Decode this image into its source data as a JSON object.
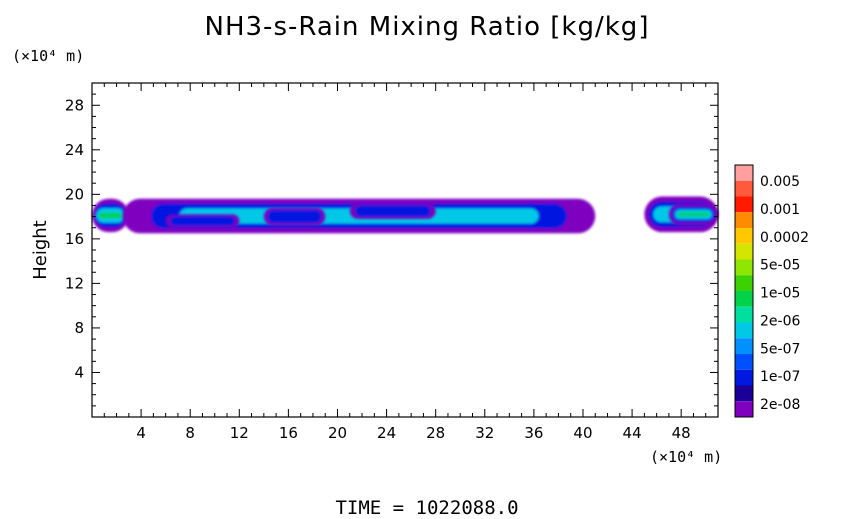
{
  "chart_data": {
    "type": "heatmap",
    "title": "NH3-s-Rain Mixing Ratio [kg/kg]",
    "xlabel": "",
    "ylabel": "Height",
    "x_unit": "(×10⁴ m)",
    "y_unit": "(×10⁴ m)",
    "xlim": [
      0,
      51
    ],
    "ylim": [
      0,
      30
    ],
    "x_ticks": [
      4,
      8,
      12,
      16,
      20,
      24,
      28,
      32,
      36,
      40,
      44,
      48
    ],
    "y_ticks": [
      4,
      8,
      12,
      16,
      20,
      24,
      28
    ],
    "colorbar": {
      "labels": [
        "0.005",
        "0.001",
        "0.0002",
        "5e-05",
        "1e-05",
        "2e-06",
        "5e-07",
        "1e-07",
        "2e-08"
      ],
      "colors": [
        "#ff9f9f",
        "#ff5a3c",
        "#ff1a00",
        "#ff8c00",
        "#ffc800",
        "#d4e600",
        "#8fe600",
        "#3cd100",
        "#00d24a",
        "#00dfa0",
        "#00c8e6",
        "#0090ff",
        "#0050ff",
        "#0018e0",
        "#1a0096",
        "#8000c0"
      ]
    },
    "regions": [
      {
        "x": [
          0,
          3
        ],
        "y": [
          16.6,
          19.6
        ],
        "level": 3
      },
      {
        "x": [
          2.5,
          41
        ],
        "y": [
          16.5,
          19.6
        ],
        "level": 2
      },
      {
        "x": [
          45,
          51
        ],
        "y": [
          16.6,
          19.8
        ],
        "level": 2
      },
      {
        "x": [
          47,
          51
        ],
        "y": [
          17.2,
          19.2
        ],
        "level": 5
      },
      {
        "x": [
          6,
          12
        ],
        "y": [
          17.0,
          18.2
        ],
        "level": 1
      },
      {
        "x": [
          14,
          19
        ],
        "y": [
          17.2,
          18.8
        ],
        "level": 1
      },
      {
        "x": [
          21,
          28
        ],
        "y": [
          17.8,
          19.2
        ],
        "level": 1
      }
    ],
    "footer": "TIME =  1022088.0"
  }
}
